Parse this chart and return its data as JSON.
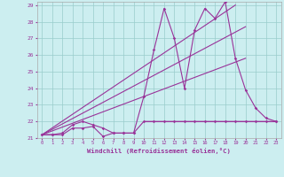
{
  "bg_color": "#cceef0",
  "line_color": "#993399",
  "grid_color": "#99cccc",
  "xlabel": "Windchill (Refroidissement éolien,°C)",
  "xlim": [
    -0.5,
    23.5
  ],
  "ylim": [
    21,
    29.2
  ],
  "yticks": [
    21,
    22,
    23,
    24,
    25,
    26,
    27,
    28,
    29
  ],
  "xticks": [
    0,
    1,
    2,
    3,
    4,
    5,
    6,
    7,
    8,
    9,
    10,
    11,
    12,
    13,
    14,
    15,
    16,
    17,
    18,
    19,
    20,
    21,
    22,
    23
  ],
  "series_jagged_x": [
    0,
    1,
    2,
    3,
    4,
    5,
    6,
    7,
    8,
    9,
    10,
    11,
    12,
    13,
    14,
    15,
    16,
    17,
    18,
    19,
    20,
    21,
    22,
    23
  ],
  "series_jagged_y": [
    21.2,
    21.2,
    21.3,
    21.8,
    22.0,
    21.8,
    21.6,
    21.3,
    21.3,
    21.3,
    23.5,
    26.3,
    28.8,
    27.0,
    24.0,
    27.5,
    28.8,
    28.2,
    29.2,
    25.8,
    23.9,
    22.8,
    22.2,
    22.0
  ],
  "series_flat_x": [
    0,
    1,
    2,
    3,
    4,
    5,
    6,
    7,
    8,
    9,
    10,
    11,
    12,
    13,
    14,
    15,
    16,
    17,
    18,
    19,
    20,
    21,
    22,
    23
  ],
  "series_flat_y": [
    21.2,
    21.2,
    21.2,
    21.6,
    21.6,
    21.7,
    21.1,
    21.3,
    21.3,
    21.3,
    22.0,
    22.0,
    22.0,
    22.0,
    22.0,
    22.0,
    22.0,
    22.0,
    22.0,
    22.0,
    22.0,
    22.0,
    22.0,
    22.0
  ],
  "diag_line1_x": [
    0,
    19
  ],
  "diag_line1_y": [
    21.2,
    29.0
  ],
  "diag_line2_x": [
    0,
    20
  ],
  "diag_line2_y": [
    21.2,
    27.7
  ],
  "diag_line3_x": [
    0,
    20
  ],
  "diag_line3_y": [
    21.2,
    25.8
  ],
  "flat_line_x": [
    10,
    23
  ],
  "flat_line_y": [
    22.0,
    22.0
  ]
}
